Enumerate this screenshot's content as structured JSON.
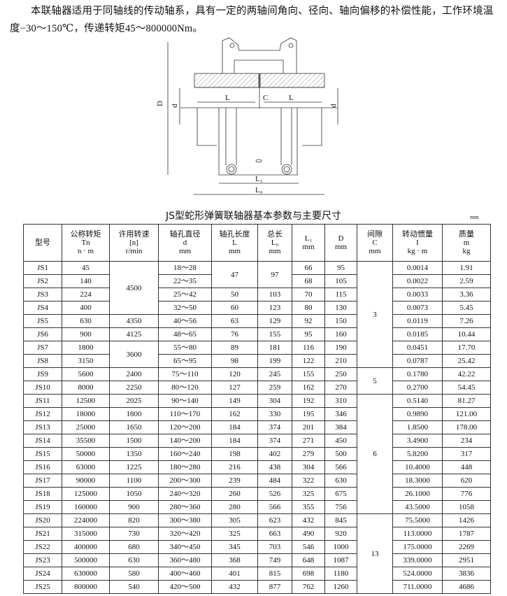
{
  "intro": "本联轴器适用于同轴线的传动轴系，具有一定的两轴间角向、径向、轴向偏移的补偿性能，工作环境温度−30～150℃，传递转矩45～800000Nm。",
  "drawing_labels": {
    "D": "D",
    "d_left": "d",
    "d_right": "d",
    "L_left": "L",
    "C": "C",
    "L_right": "L",
    "L1": "L₁",
    "L0": "L₀"
  },
  "table_title": "JS型蛇形弹簧联轴器基本参数与主要尺寸",
  "unit": "mm",
  "headers": [
    [
      "型号"
    ],
    [
      "公称转矩",
      "Tn",
      "n · m"
    ],
    [
      "许用转速",
      "[n]",
      "r/min"
    ],
    [
      "轴孔直径",
      "d",
      "mm"
    ],
    [
      "轴孔长度",
      "L",
      "mm"
    ],
    [
      "总长",
      "L₀",
      "mm"
    ],
    [
      "L₁",
      "mm"
    ],
    [
      "D",
      "mm"
    ],
    [
      "间隙",
      "C",
      "mm"
    ],
    [
      "转动惯量",
      "I",
      "kg · m"
    ],
    [
      "质量",
      "m",
      "kg"
    ]
  ],
  "rows": [
    [
      "JS1",
      "45",
      "4500",
      "18～28",
      "47",
      "97",
      "66",
      "95",
      "3",
      "0.0014",
      "1.91"
    ],
    [
      "JS2",
      "140",
      null,
      "22～35",
      null,
      null,
      "68",
      "105",
      null,
      "0.0022",
      "2.59"
    ],
    [
      "JS3",
      "224",
      null,
      "25～42",
      "50",
      "103",
      "70",
      "115",
      null,
      "0.0033",
      "3.36"
    ],
    [
      "JS4",
      "400",
      null,
      "32～50",
      "60",
      "123",
      "80",
      "130",
      null,
      "0.0073",
      "5.45"
    ],
    [
      "JS5",
      "630",
      "4350",
      "40～56",
      "63",
      "129",
      "92",
      "150",
      null,
      "0.0119",
      "7.26"
    ],
    [
      "JS6",
      "900",
      "4125",
      "48～65",
      "76",
      "155",
      "95",
      "160",
      null,
      "0.0185",
      "10.44"
    ],
    [
      "JS7",
      "1800",
      "3600",
      "55～80",
      "89",
      "181",
      "116",
      "190",
      null,
      "0.0451",
      "17.70"
    ],
    [
      "JS8",
      "3150",
      null,
      "65～95",
      "98",
      "199",
      "122",
      "210",
      null,
      "0.0787",
      "25.42"
    ],
    [
      "JS9",
      "5600",
      "2400",
      "75～110",
      "120",
      "245",
      "155",
      "250",
      "5",
      "0.1780",
      "42.22"
    ],
    [
      "JS10",
      "8000",
      "2250",
      "80～120",
      "127",
      "259",
      "162",
      "270",
      null,
      "0.2700",
      "54.45"
    ],
    [
      "JS11",
      "12500",
      "2025",
      "90～140",
      "149",
      "304",
      "192",
      "310",
      "6",
      "0.5140",
      "81.27"
    ],
    [
      "JS12",
      "18000",
      "1800",
      "110～170",
      "162",
      "330",
      "195",
      "346",
      null,
      "0.9890",
      "121.00"
    ],
    [
      "JS13",
      "25000",
      "1650",
      "120～200",
      "184",
      "374",
      "201",
      "384",
      null,
      "1.8500",
      "178.00"
    ],
    [
      "JS14",
      "35500",
      "1500",
      "140～200",
      "184",
      "374",
      "271",
      "450",
      null,
      "3.4900",
      "234"
    ],
    [
      "JS15",
      "50000",
      "1350",
      "160～240",
      "198",
      "402",
      "279",
      "500",
      null,
      "5.8200",
      "317"
    ],
    [
      "JS16",
      "63000",
      "1225",
      "180～280",
      "216",
      "438",
      "304",
      "566",
      null,
      "10.4000",
      "448"
    ],
    [
      "JS17",
      "90000",
      "1100",
      "200～300",
      "239",
      "484",
      "322",
      "630",
      null,
      "18.3000",
      "620"
    ],
    [
      "JS18",
      "125000",
      "1050",
      "240～320",
      "260",
      "526",
      "325",
      "675",
      null,
      "26.1000",
      "776"
    ],
    [
      "JS19",
      "160000",
      "900",
      "280～360",
      "280",
      "566",
      "355",
      "756",
      null,
      "43.5000",
      "1058"
    ],
    [
      "JS20",
      "224000",
      "820",
      "300～380",
      "305",
      "623",
      "432",
      "845",
      "13",
      "75.5000",
      "1426"
    ],
    [
      "JS21",
      "315000",
      "730",
      "320～420",
      "325",
      "663",
      "490",
      "920",
      null,
      "113.0000",
      "1787"
    ],
    [
      "JS22",
      "400000",
      "680",
      "340～450",
      "345",
      "703",
      "546",
      "1000",
      null,
      "175.0000",
      "2269"
    ],
    [
      "JS23",
      "500000",
      "630",
      "360～480",
      "368",
      "749",
      "648",
      "1087",
      null,
      "339.0000",
      "2951"
    ],
    [
      "JS24",
      "630000",
      "580",
      "400～460",
      "401",
      "815",
      "698",
      "1180",
      null,
      "524.0000",
      "3836"
    ],
    [
      "JS25",
      "800000",
      "540",
      "420～500",
      "432",
      "877",
      "762",
      "1260",
      null,
      "711.0000",
      "4686"
    ]
  ]
}
